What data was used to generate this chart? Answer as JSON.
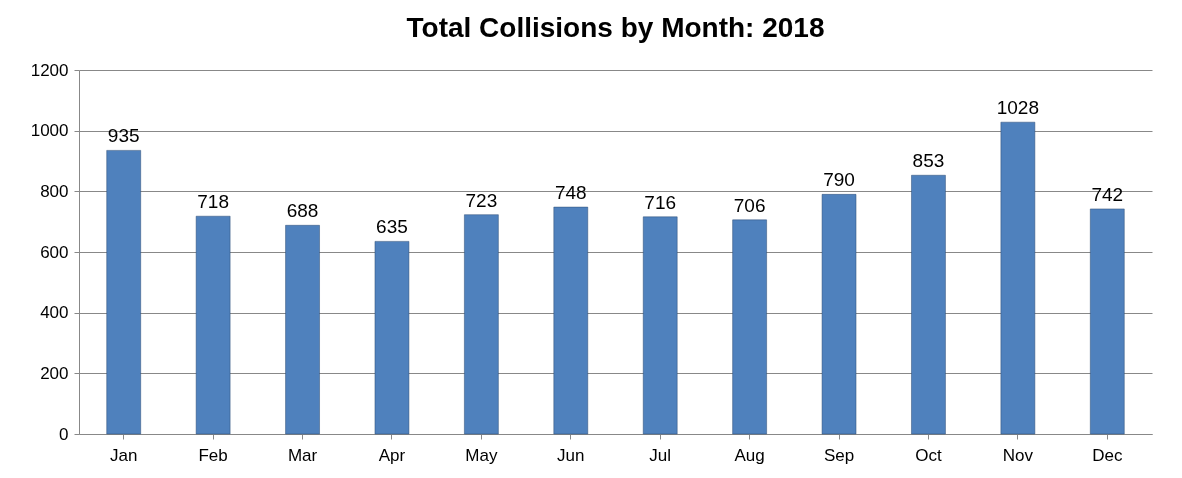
{
  "chart_data": {
    "type": "bar",
    "title": "Total Collisions by Month: 2018",
    "categories": [
      "Jan",
      "Feb",
      "Mar",
      "Apr",
      "May",
      "Jun",
      "Jul",
      "Aug",
      "Sep",
      "Oct",
      "Nov",
      "Dec"
    ],
    "values": [
      935,
      718,
      688,
      635,
      723,
      748,
      716,
      706,
      790,
      853,
      1028,
      742
    ],
    "color": "#4f81bd",
    "ylim": [
      0,
      1200
    ],
    "yticks": [
      0,
      200,
      400,
      600,
      800,
      1000,
      1200
    ],
    "grid": "y",
    "data_labels": true
  }
}
